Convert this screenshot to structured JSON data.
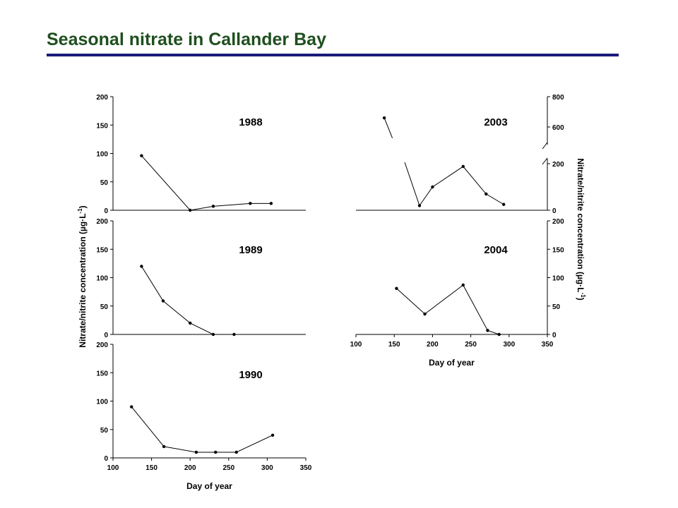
{
  "title": "Seasonal nitrate in Callander Bay",
  "colors": {
    "title": "#1f4f1f",
    "rule": "#1a1a7a",
    "line": "#000000"
  },
  "left_axis_label": "Nitrate/nitrite concentration (µg·L",
  "left_axis_sup": "-1",
  "left_axis_close": ")",
  "right_axis_label": "Nitrate/nitrite concentration (µg·L",
  "right_axis_sup": "-1",
  "right_axis_close": ")",
  "chart_data": [
    {
      "type": "line",
      "label": "1988",
      "xlim": [
        100,
        350
      ],
      "ylim": [
        0,
        200
      ],
      "yticks": [
        0,
        50,
        100,
        150,
        200
      ],
      "x": [
        137,
        200,
        230,
        278,
        305
      ],
      "y": [
        96,
        0,
        7,
        12,
        12
      ]
    },
    {
      "type": "line",
      "label": "1989",
      "xlim": [
        100,
        350
      ],
      "ylim": [
        0,
        200
      ],
      "yticks": [
        0,
        50,
        100,
        150,
        200
      ],
      "x": [
        137,
        165,
        200,
        230,
        257
      ],
      "y": [
        120,
        59,
        20,
        0,
        0
      ]
    },
    {
      "type": "line",
      "label": "1990",
      "xlim": [
        100,
        350
      ],
      "ylim": [
        0,
        200
      ],
      "yticks": [
        0,
        50,
        100,
        150,
        200
      ],
      "xticks": [
        100,
        150,
        200,
        250,
        300,
        350
      ],
      "xlabel": "Day of year",
      "x": [
        124,
        166,
        208,
        233,
        260,
        307
      ],
      "y": [
        90,
        20,
        10,
        10,
        10,
        40
      ]
    },
    {
      "type": "line",
      "label": "2003",
      "yaxis_side": "right",
      "xlim": [
        100,
        350
      ],
      "broken_axis": true,
      "ytick_labels": [
        "0",
        "200",
        "600",
        "800"
      ],
      "x": [
        137,
        183,
        200,
        240,
        270,
        293
      ],
      "y": [
        660,
        20,
        100,
        188,
        70,
        25
      ]
    },
    {
      "type": "line",
      "label": "2004",
      "yaxis_side": "right",
      "xlim": [
        100,
        350
      ],
      "ylim": [
        0,
        200
      ],
      "yticks": [
        0,
        50,
        100,
        150,
        200
      ],
      "xticks": [
        100,
        150,
        200,
        250,
        300,
        350
      ],
      "xlabel": "Day of year",
      "x": [
        153,
        190,
        240,
        272,
        287
      ],
      "y": [
        81,
        36,
        87,
        7,
        0
      ]
    }
  ]
}
